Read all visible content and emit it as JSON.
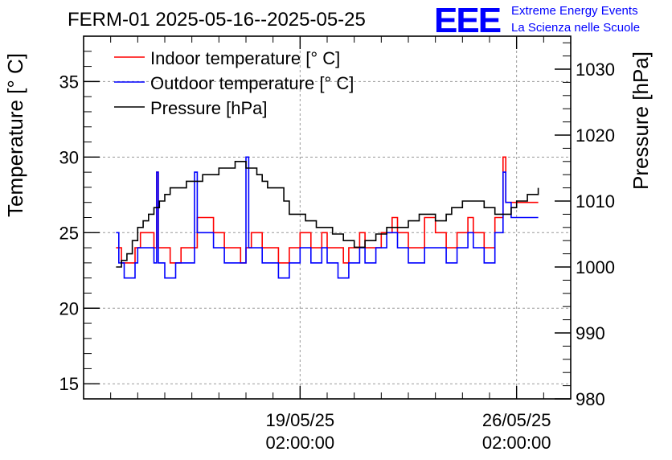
{
  "header": {
    "title": "FERM-01 2025-05-16--2025-05-25",
    "logo_letters": "EEE",
    "logo_line1": "Extreme Energy Events",
    "logo_line2": "La Scienza nelle Scuole",
    "logo_color": "#0000ff"
  },
  "chart_data": {
    "type": "line",
    "title": "FERM-01 2025-05-16--2025-05-25",
    "ylabel": "Temperature [° C]",
    "y2label": "Pressure [hPa]",
    "xlabel": "",
    "ylim": [
      14,
      38
    ],
    "y2lim": [
      980,
      1035
    ],
    "xlim": [
      0,
      9
    ],
    "y_ticks": [
      "15",
      "20",
      "25",
      "30",
      "35"
    ],
    "y2_ticks": [
      "980",
      "990",
      "1000",
      "1010",
      "1020",
      "1030"
    ],
    "x_ticks": [
      {
        "x": 4.0,
        "date": "19/05/25",
        "time": "02:00:00"
      },
      {
        "x": 8.0,
        "date": "26/05/25",
        "time": "02:00:00"
      }
    ],
    "x_unit_note": "x in units of 1/4 day from 2025-05-16 ~02:00 shown as relative tick positions",
    "grid": true,
    "legend_placement": "top-left",
    "series": [
      {
        "name": "Indoor temperature [° C]",
        "color": "#ff0000",
        "axis": "left",
        "x": [
          0.6,
          0.65,
          0.7,
          0.75,
          0.85,
          0.95,
          1.0,
          1.05,
          1.1,
          1.2,
          1.3,
          1.35,
          1.38,
          1.42,
          1.5,
          1.6,
          1.7,
          1.8,
          1.9,
          2.0,
          2.05,
          2.1,
          2.2,
          2.3,
          2.4,
          2.5,
          2.6,
          2.7,
          2.8,
          2.9,
          3.0,
          3.05,
          3.1,
          3.2,
          3.3,
          3.4,
          3.5,
          3.6,
          3.7,
          3.8,
          3.9,
          4.0,
          4.1,
          4.2,
          4.3,
          4.4,
          4.5,
          4.6,
          4.7,
          4.8,
          4.9,
          5.0,
          5.1,
          5.2,
          5.3,
          5.4,
          5.5,
          5.6,
          5.7,
          5.8,
          5.9,
          6.0,
          6.1,
          6.2,
          6.3,
          6.4,
          6.5,
          6.6,
          6.7,
          6.8,
          6.9,
          7.0,
          7.1,
          7.2,
          7.3,
          7.4,
          7.5,
          7.6,
          7.7,
          7.75,
          7.8,
          7.85,
          7.9,
          8.0,
          8.1,
          8.2,
          8.3,
          8.4
        ],
        "y": [
          24,
          24,
          23,
          23,
          23,
          24,
          24,
          25,
          25,
          25,
          24,
          29,
          24,
          24,
          24,
          23,
          23,
          24,
          24,
          24,
          24,
          26,
          26,
          26,
          25,
          25,
          24,
          24,
          24,
          23,
          24,
          24,
          25,
          25,
          24,
          24,
          24,
          23,
          23,
          24,
          24,
          25,
          25,
          24,
          24,
          25,
          24,
          24,
          24,
          23,
          24,
          24,
          25,
          24,
          24,
          24,
          25,
          25,
          26,
          25,
          25,
          24,
          24,
          24,
          26,
          26,
          25,
          25,
          24,
          24,
          25,
          25,
          26,
          25,
          25,
          24,
          24,
          26,
          26,
          30,
          27,
          27,
          27,
          27,
          27,
          27,
          27,
          27
        ]
      },
      {
        "name": "Outdoor temperature [° C]",
        "color": "#0000ff",
        "axis": "left",
        "x": [
          0.6,
          0.65,
          0.7,
          0.75,
          0.85,
          0.95,
          1.0,
          1.05,
          1.1,
          1.2,
          1.3,
          1.35,
          1.38,
          1.42,
          1.5,
          1.6,
          1.7,
          1.8,
          1.9,
          2.0,
          2.05,
          2.1,
          2.2,
          2.3,
          2.4,
          2.5,
          2.6,
          2.7,
          2.8,
          2.9,
          3.0,
          3.05,
          3.1,
          3.2,
          3.3,
          3.4,
          3.5,
          3.6,
          3.7,
          3.8,
          3.9,
          4.0,
          4.1,
          4.2,
          4.3,
          4.4,
          4.5,
          4.6,
          4.7,
          4.8,
          4.9,
          5.0,
          5.1,
          5.2,
          5.3,
          5.4,
          5.5,
          5.6,
          5.7,
          5.8,
          5.9,
          6.0,
          6.1,
          6.2,
          6.3,
          6.4,
          6.5,
          6.6,
          6.7,
          6.8,
          6.9,
          7.0,
          7.1,
          7.2,
          7.3,
          7.4,
          7.5,
          7.6,
          7.7,
          7.75,
          7.8,
          7.85,
          7.9,
          8.0,
          8.1,
          8.2,
          8.3,
          8.4
        ],
        "y": [
          25,
          23,
          23,
          22,
          22,
          23,
          24,
          24,
          24,
          24,
          23,
          29,
          23,
          23,
          22,
          22,
          23,
          23,
          23,
          23,
          29,
          25,
          25,
          25,
          24,
          24,
          23,
          23,
          23,
          23,
          30,
          24,
          24,
          24,
          23,
          23,
          23,
          22,
          22,
          23,
          23,
          24,
          24,
          23,
          23,
          24,
          23,
          23,
          22,
          22,
          23,
          23,
          24,
          23,
          23,
          24,
          24,
          25,
          25,
          24,
          24,
          23,
          23,
          23,
          24,
          24,
          24,
          24,
          23,
          23,
          24,
          24,
          25,
          24,
          24,
          23,
          23,
          25,
          25,
          29,
          27,
          27,
          26,
          26,
          26,
          26,
          26,
          26
        ]
      },
      {
        "name": "Pressure [hPa]",
        "color": "#000000",
        "axis": "right",
        "x": [
          0.6,
          0.7,
          0.8,
          0.9,
          1.0,
          1.1,
          1.2,
          1.3,
          1.4,
          1.5,
          1.6,
          1.7,
          1.8,
          1.9,
          2.0,
          2.1,
          2.2,
          2.3,
          2.4,
          2.5,
          2.6,
          2.7,
          2.8,
          2.9,
          3.0,
          3.1,
          3.2,
          3.3,
          3.4,
          3.5,
          3.6,
          3.7,
          3.8,
          3.9,
          4.0,
          4.1,
          4.2,
          4.3,
          4.4,
          4.5,
          4.6,
          4.7,
          4.8,
          4.9,
          5.0,
          5.1,
          5.2,
          5.3,
          5.4,
          5.5,
          5.6,
          5.7,
          5.8,
          5.9,
          6.0,
          6.1,
          6.2,
          6.3,
          6.4,
          6.5,
          6.6,
          6.7,
          6.8,
          6.9,
          7.0,
          7.1,
          7.2,
          7.3,
          7.4,
          7.5,
          7.6,
          7.7,
          7.8,
          7.9,
          8.0,
          8.1,
          8.2,
          8.3,
          8.4
        ],
        "y": [
          1000,
          1001,
          1002,
          1004,
          1006,
          1007,
          1008,
          1009,
          1010,
          1011,
          1012,
          1012,
          1012,
          1013,
          1013,
          1013,
          1014,
          1014,
          1014,
          1015,
          1015,
          1015,
          1016,
          1016,
          1015,
          1015,
          1014,
          1013,
          1012,
          1012,
          1012,
          1010,
          1008,
          1008,
          1008,
          1007,
          1007,
          1006,
          1006,
          1006,
          1005,
          1005,
          1004,
          1004,
          1003,
          1003,
          1004,
          1004,
          1005,
          1005,
          1006,
          1006,
          1006,
          1006,
          1007,
          1007,
          1008,
          1008,
          1008,
          1007,
          1007,
          1008,
          1009,
          1009,
          1010,
          1010,
          1010,
          1010,
          1009,
          1009,
          1008,
          1008,
          1008,
          1009,
          1010,
          1010,
          1011,
          1011,
          1012
        ]
      }
    ]
  }
}
